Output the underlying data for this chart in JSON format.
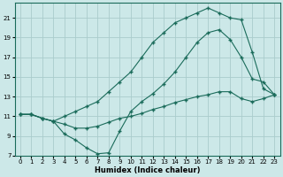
{
  "xlabel": "Humidex (Indice chaleur)",
  "bg_color": "#cce8e8",
  "grid_color": "#aacccc",
  "line_color": "#1a6b5a",
  "xlim": [
    -0.5,
    23.5
  ],
  "ylim": [
    7,
    22.5
  ],
  "yticks": [
    7,
    9,
    11,
    13,
    15,
    17,
    19,
    21
  ],
  "xticks": [
    0,
    1,
    2,
    3,
    4,
    5,
    6,
    7,
    8,
    9,
    10,
    11,
    12,
    13,
    14,
    15,
    16,
    17,
    18,
    19,
    20,
    21,
    22,
    23
  ],
  "line1_x": [
    0,
    1,
    2,
    3,
    4,
    5,
    6,
    7,
    8,
    9,
    10,
    11,
    12,
    13,
    14,
    15,
    16,
    17,
    18,
    19,
    20,
    21,
    22,
    23
  ],
  "line1_y": [
    11.2,
    11.2,
    10.8,
    10.5,
    9.2,
    8.6,
    7.8,
    7.2,
    7.3,
    9.5,
    11.5,
    12.5,
    13.3,
    14.3,
    15.5,
    17.0,
    18.5,
    19.5,
    19.8,
    18.8,
    17.0,
    14.8,
    14.5,
    13.2
  ],
  "line2_x": [
    0,
    1,
    2,
    3,
    4,
    5,
    6,
    7,
    8,
    9,
    10,
    11,
    12,
    13,
    14,
    15,
    16,
    17,
    18,
    19,
    20,
    21,
    22,
    23
  ],
  "line2_y": [
    11.2,
    11.2,
    10.8,
    10.5,
    11.0,
    11.5,
    12.0,
    12.5,
    13.5,
    14.5,
    15.5,
    17.0,
    18.5,
    19.5,
    20.5,
    21.0,
    21.5,
    22.0,
    21.5,
    21.0,
    20.8,
    17.5,
    13.8,
    13.2
  ],
  "line3_x": [
    0,
    1,
    2,
    3,
    4,
    5,
    6,
    7,
    8,
    9,
    10,
    11,
    12,
    13,
    14,
    15,
    16,
    17,
    18,
    19,
    20,
    21,
    22,
    23
  ],
  "line3_y": [
    11.2,
    11.2,
    10.8,
    10.5,
    10.2,
    9.8,
    9.8,
    10.0,
    10.4,
    10.8,
    11.0,
    11.3,
    11.7,
    12.0,
    12.4,
    12.7,
    13.0,
    13.2,
    13.5,
    13.5,
    12.8,
    12.5,
    12.8,
    13.2
  ],
  "xlabel_fontsize": 6.0,
  "tick_fontsize": 5.0,
  "marker": "+",
  "markersize": 3.0,
  "linewidth": 0.8
}
